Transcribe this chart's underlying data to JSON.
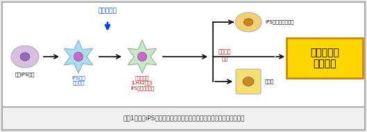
{
  "bg_color": "#e8e8e8",
  "main_bg": "#ffffff",
  "gold_box_color": "#FFD700",
  "gold_box_edge": "#cc8800",
  "gold_box_text": "肝再生医療\nへの応用",
  "label_hito": "ヒトiPS細胞",
  "label_ips_hoshi": "iPS由来\n肝星細胞",
  "label_gene_ctrl_top": "遺伝子制御",
  "label_gene_ctrl_body": "遺伝子制御\n(LHX2発現)\niPS由来肝星細胞",
  "label_ips_precursor": "iPS由来肝前駆細胞",
  "label_kansaibou": "肝細胞",
  "label_seijuku": "成熟化を\n促進",
  "caption": "＜図1：ヒトiPS細胞由来肝星細胞誘導法の開発と再生医療への応用＞",
  "cell1_face": "#d8c0e0",
  "cell1_nucleus": "#9966bb",
  "cell2_face": "#aaddee",
  "cell2_edge": "#77aacc",
  "cell3_face": "#c8e8c8",
  "cell3_edge": "#88aa88",
  "precursor_face": "#f5d070",
  "precursor_nucleus": "#cc8800",
  "liver_face": "#f5e070",
  "liver_nucleus": "#cc8822",
  "nucleus_edge": "#665577",
  "arrow_color": "#000000",
  "blue_arrow_color": "#0044dd",
  "red_text": "#cc0000",
  "blue_text": "#0055ff",
  "dark_text": "#111111",
  "caption_color": "#333333",
  "border_color": "#999999"
}
